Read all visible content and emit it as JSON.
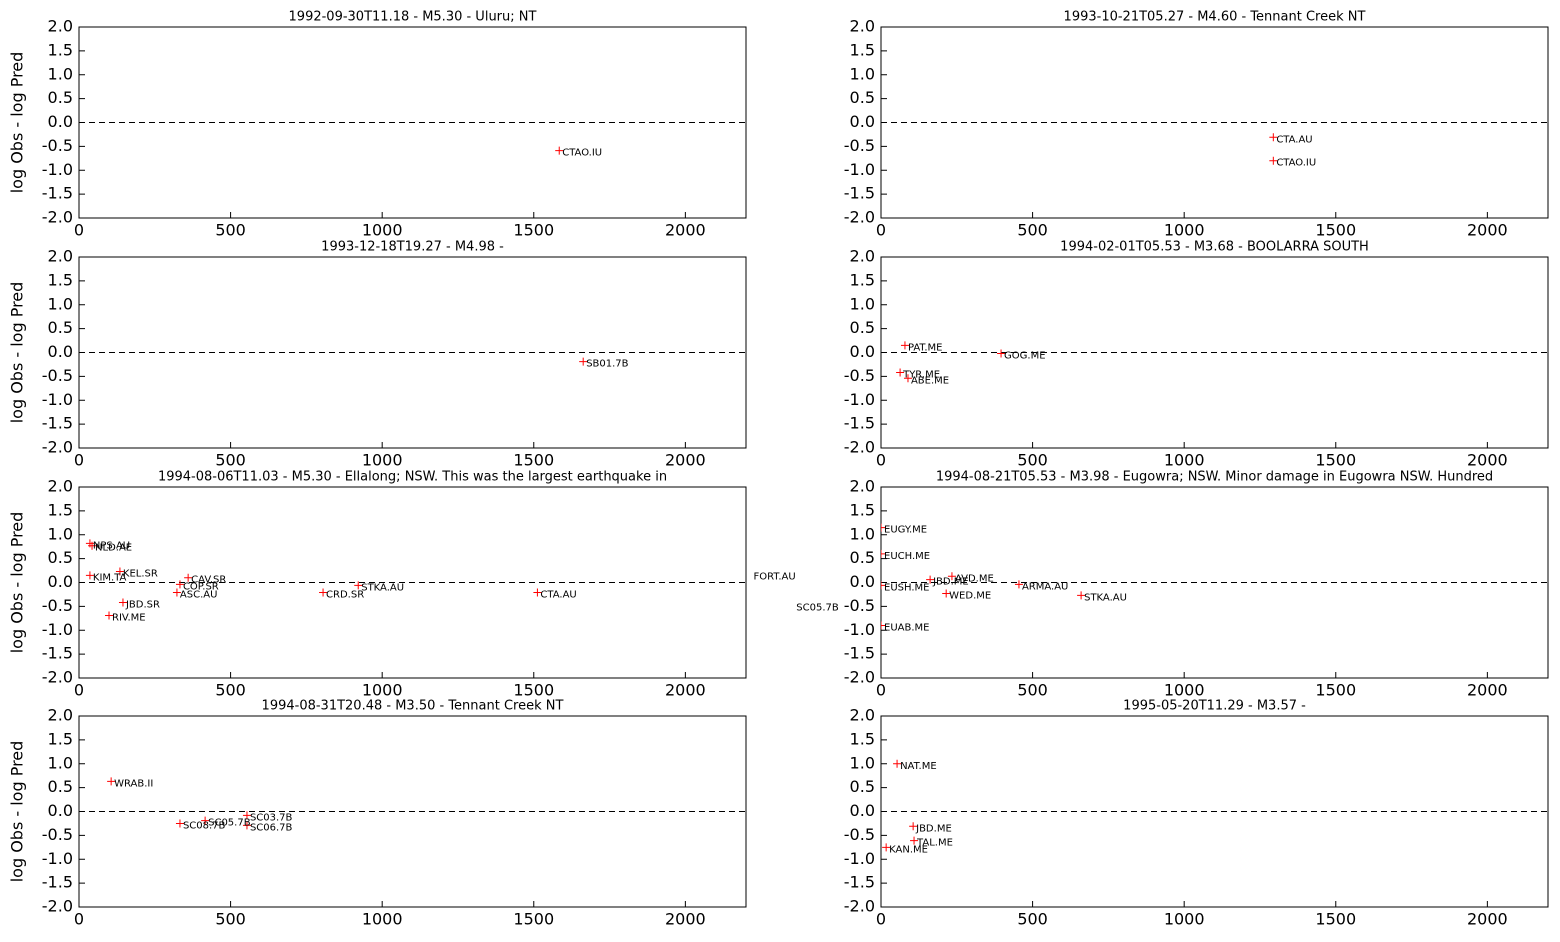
{
  "chart_data": [
    {
      "type": "scatter",
      "title": "1992-09-30T11.18 - M5.30 - Uluru; NT",
      "ylabel": "log Obs - log Pred",
      "color": "#ff0000",
      "hline": 0,
      "x": [
        1584
      ],
      "y": [
        -0.59
      ],
      "labels": [
        "CTAO.IU"
      ],
      "xlim": [
        0,
        2200
      ],
      "ylim": [
        -2,
        2
      ],
      "xticks": [
        0,
        500,
        1000,
        1500,
        2000
      ],
      "yticks": [
        {
          "value": -2,
          "label": "-2.0"
        },
        {
          "value": -1.5,
          "label": "-1.5"
        },
        {
          "value": -1,
          "label": "-1.0"
        },
        {
          "value": -0.5,
          "label": "-0.5"
        },
        {
          "value": 0,
          "label": "0.0"
        },
        {
          "value": 0.5,
          "label": "0.5"
        },
        {
          "value": 1,
          "label": "1.0"
        },
        {
          "value": 1.5,
          "label": "1.5"
        },
        {
          "value": 2,
          "label": "2.0"
        }
      ]
    },
    {
      "type": "scatter",
      "title": "1993-10-21T05.27 - M4.60 - Tennant Creek NT",
      "color": "#ff0000",
      "hline": 0,
      "x": [
        1294,
        1294
      ],
      "y": [
        -0.31,
        -0.8
      ],
      "labels": [
        "CTA.AU",
        "CTAO.IU"
      ],
      "xlim": [
        0,
        2200
      ],
      "ylim": [
        -2,
        2
      ],
      "xticks": [
        0,
        500,
        1000,
        1500,
        2000
      ],
      "yticks": [
        {
          "value": -2,
          "label": "-2.0"
        },
        {
          "value": -1.5,
          "label": "-1.5"
        },
        {
          "value": -1,
          "label": "-1.0"
        },
        {
          "value": -0.5,
          "label": "-0.5"
        },
        {
          "value": 0,
          "label": "0.0"
        },
        {
          "value": 0.5,
          "label": "0.5"
        },
        {
          "value": 1,
          "label": "1.0"
        },
        {
          "value": 1.5,
          "label": "1.5"
        },
        {
          "value": 2,
          "label": "2.0"
        }
      ]
    },
    {
      "type": "scatter",
      "title": "1993-12-18T19.27 - M4.98 -",
      "ylabel": "log Obs - log Pred",
      "color": "#ff0000",
      "hline": 0,
      "x": [
        1663
      ],
      "y": [
        -0.19
      ],
      "labels": [
        "SB01.7B"
      ],
      "xlim": [
        0,
        2200
      ],
      "ylim": [
        -2,
        2
      ],
      "xticks": [
        0,
        500,
        1000,
        1500,
        2000
      ],
      "yticks": [
        {
          "value": -2,
          "label": "-2.0"
        },
        {
          "value": -1.5,
          "label": "-1.5"
        },
        {
          "value": -1,
          "label": "-1.0"
        },
        {
          "value": -0.5,
          "label": "-0.5"
        },
        {
          "value": 0,
          "label": "0.0"
        },
        {
          "value": 0.5,
          "label": "0.5"
        },
        {
          "value": 1,
          "label": "1.0"
        },
        {
          "value": 1.5,
          "label": "1.5"
        },
        {
          "value": 2,
          "label": "2.0"
        }
      ]
    },
    {
      "type": "scatter",
      "title": "1994-02-01T05.53 - M3.68 - BOOLARRA SOUTH",
      "color": "#ff0000",
      "hline": 0,
      "x": [
        79,
        396,
        63,
        89
      ],
      "y": [
        0.15,
        -0.02,
        -0.42,
        -0.54
      ],
      "labels": [
        "PAT.ME",
        "GOG.ME",
        "TYR.ME",
        "ABE.ME"
      ],
      "xlim": [
        0,
        2200
      ],
      "ylim": [
        -2,
        2
      ],
      "xticks": [
        0,
        500,
        1000,
        1500,
        2000
      ],
      "yticks": [
        {
          "value": -2,
          "label": "-2.0"
        },
        {
          "value": -1.5,
          "label": "-1.5"
        },
        {
          "value": -1,
          "label": "-1.0"
        },
        {
          "value": -0.5,
          "label": "-0.5"
        },
        {
          "value": 0,
          "label": "0.0"
        },
        {
          "value": 0.5,
          "label": "0.5"
        },
        {
          "value": 1,
          "label": "1.0"
        },
        {
          "value": 1.5,
          "label": "1.5"
        },
        {
          "value": 2,
          "label": "2.0"
        }
      ]
    },
    {
      "type": "scatter",
      "title": "1994-08-06T11.03 - M5.30 - Ellalong; NSW.  This was the largest earthquake in",
      "ylabel": "log Obs - log Pred",
      "color": "#ff0000",
      "hline": 0,
      "x": [
        36,
        43,
        36,
        135,
        360,
        333,
        323,
        805,
        921,
        1512,
        99,
        145,
        2215,
        2356
      ],
      "y": [
        0.82,
        0.77,
        0.15,
        0.23,
        0.1,
        -0.04,
        -0.21,
        -0.21,
        -0.06,
        -0.21,
        -0.69,
        -0.42,
        0.17,
        -0.48
      ],
      "labels": [
        "NPS.AU",
        "NLD.AE",
        "KIM.TA",
        "KEL.SR",
        "CAV.SR",
        "COP.SR",
        "ASC.AU",
        "CRD.SR",
        "STKA.AU",
        "CTA.AU",
        "RIV.ME",
        "JBD.SR",
        "FORT.AU",
        "SC05.7B"
      ],
      "xlim": [
        0,
        2200
      ],
      "ylim": [
        -2,
        2
      ],
      "xticks": [
        0,
        500,
        1000,
        1500,
        2000
      ],
      "yticks": [
        {
          "value": -2,
          "label": "-2.0"
        },
        {
          "value": -1.5,
          "label": "-1.5"
        },
        {
          "value": -1,
          "label": "-1.0"
        },
        {
          "value": -0.5,
          "label": "-0.5"
        },
        {
          "value": 0,
          "label": "0.0"
        },
        {
          "value": 0.5,
          "label": "0.5"
        },
        {
          "value": 1,
          "label": "1.0"
        },
        {
          "value": 1.5,
          "label": "1.5"
        },
        {
          "value": 2,
          "label": "2.0"
        }
      ]
    },
    {
      "type": "scatter",
      "title": "1994-08-21T05.53 - M3.98 - Eugowra; NSW. Minor damage in Eugowra NSW. Hundred",
      "color": "#ff0000",
      "hline": 0,
      "x": [
        0,
        0,
        0,
        0,
        162,
        234,
        215,
        455,
        660
      ],
      "y": [
        1.15,
        0.6,
        -0.06,
        -0.9,
        0.06,
        0.13,
        -0.23,
        -0.04,
        -0.27
      ],
      "labels": [
        "EUGY.ME",
        "EUCH.ME",
        "EUSH.ME",
        "EUAB.ME",
        "JBD.ME",
        "AVD.ME",
        "WED.ME",
        "ARMA.AU",
        "STKA.AU"
      ],
      "xlim": [
        0,
        2200
      ],
      "ylim": [
        -2,
        2
      ],
      "xticks": [
        0,
        500,
        1000,
        1500,
        2000
      ],
      "yticks": [
        {
          "value": -2,
          "label": "-2.0"
        },
        {
          "value": -1.5,
          "label": "-1.5"
        },
        {
          "value": -1,
          "label": "-1.0"
        },
        {
          "value": -0.5,
          "label": "-0.5"
        },
        {
          "value": 0,
          "label": "0.0"
        },
        {
          "value": 0.5,
          "label": "0.5"
        },
        {
          "value": 1,
          "label": "1.0"
        },
        {
          "value": 1.5,
          "label": "1.5"
        },
        {
          "value": 2,
          "label": "2.0"
        }
      ]
    },
    {
      "type": "scatter",
      "title": "1994-08-31T20.48 - M3.50 - Tennant Creek NT",
      "ylabel": "log Obs - log Pred",
      "color": "#ff0000",
      "hline": 0,
      "x": [
        106,
        333,
        416,
        554,
        554
      ],
      "y": [
        0.63,
        -0.25,
        -0.19,
        -0.08,
        -0.29
      ],
      "labels": [
        "WRAB.II",
        "SC08.7B",
        "SC05.7B",
        "SC03.7B",
        "SC06.7B"
      ],
      "xlim": [
        0,
        2200
      ],
      "ylim": [
        -2,
        2
      ],
      "xticks": [
        0,
        500,
        1000,
        1500,
        2000
      ],
      "yticks": [
        {
          "value": -2,
          "label": "-2.0"
        },
        {
          "value": -1.5,
          "label": "-1.5"
        },
        {
          "value": -1,
          "label": "-1.0"
        },
        {
          "value": -0.5,
          "label": "-0.5"
        },
        {
          "value": 0,
          "label": "0.0"
        },
        {
          "value": 0.5,
          "label": "0.5"
        },
        {
          "value": 1,
          "label": "1.0"
        },
        {
          "value": 1.5,
          "label": "1.5"
        },
        {
          "value": 2,
          "label": "2.0"
        }
      ]
    },
    {
      "type": "scatter",
      "title": "1995-05-20T11.29 - M3.57 -",
      "color": "#ff0000",
      "hline": 0,
      "x": [
        53,
        17,
        106,
        109
      ],
      "y": [
        1.0,
        -0.75,
        -0.31,
        -0.61
      ],
      "labels": [
        "NAT.ME",
        "KAN.ME",
        "JBD.ME",
        "TAL.ME"
      ],
      "xlim": [
        0,
        2200
      ],
      "ylim": [
        -2,
        2
      ],
      "xticks": [
        0,
        500,
        1000,
        1500,
        2000
      ],
      "yticks": [
        {
          "value": -2,
          "label": "-2.0"
        },
        {
          "value": -1.5,
          "label": "-1.5"
        },
        {
          "value": -1,
          "label": "-1.0"
        },
        {
          "value": -0.5,
          "label": "-0.5"
        },
        {
          "value": 0,
          "label": "0.0"
        },
        {
          "value": 0.5,
          "label": "0.5"
        },
        {
          "value": 1,
          "label": "1.0"
        },
        {
          "value": 1.5,
          "label": "1.5"
        },
        {
          "value": 2,
          "label": "2.0"
        }
      ]
    }
  ]
}
